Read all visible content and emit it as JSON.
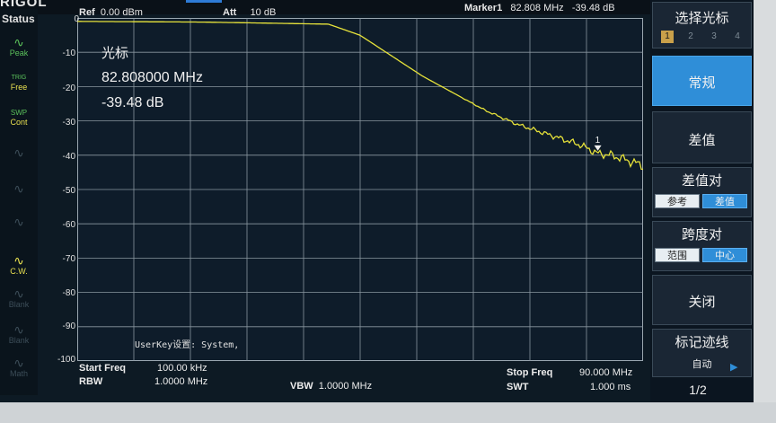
{
  "header": {
    "logo": "RIGOL",
    "ref_label": "Ref",
    "ref_value": "0.00 dBm",
    "att_label": "Att",
    "att_value": "10 dB",
    "marker_label": "Marker1",
    "marker_freq": "82.808 MHz",
    "marker_amp": "-39.48 dB"
  },
  "status": {
    "title": "Status",
    "items": [
      {
        "label": "Peak",
        "icon": "peak-icon"
      },
      {
        "label": "TRIG",
        "value": "Free"
      },
      {
        "label": "SWP",
        "value": "Cont"
      },
      {
        "label": "C.W.",
        "icon": "cw-icon"
      },
      {
        "label": "Blank"
      },
      {
        "label": "Blank"
      },
      {
        "label": "Math"
      }
    ]
  },
  "plot": {
    "y_ticks": [
      "0",
      "-10",
      "-20",
      "-30",
      "-40",
      "-50",
      "-60",
      "-70",
      "-80",
      "-90",
      "-100"
    ],
    "marker_box": {
      "title": "光标",
      "freq": "82.808000 MHz",
      "amp": "-39.48 dB"
    },
    "marker_number": "1",
    "user_key": "UserKey设置:   System,",
    "trace_color": "#e6e23a"
  },
  "chart_data": {
    "type": "line",
    "title": "",
    "xlabel": "",
    "ylabel": "",
    "xlim": [
      0.1,
      90.0
    ],
    "ylim": [
      -100,
      0
    ],
    "x": [
      0.1,
      20,
      40,
      45,
      50,
      55,
      60,
      65,
      70,
      75,
      80,
      82.8,
      85,
      90
    ],
    "series": [
      {
        "values": [
          -1.0,
          -1.2,
          -1.8,
          -5,
          -11,
          -17,
          -22,
          -27,
          -31,
          -34,
          -37,
          -39.5,
          -40,
          -43
        ]
      }
    ]
  },
  "footer": {
    "start_label": "Start Freq",
    "start_value": "100.00 kHz",
    "rbw_label": "RBW",
    "rbw_value": "1.0000 MHz",
    "vbw_label": "VBW",
    "vbw_value": "1.0000 MHz",
    "stop_label": "Stop Freq",
    "stop_value": "90.000 MHz",
    "swt_label": "SWT",
    "swt_value": "1.000 ms"
  },
  "softkeys": {
    "select_marker": "选择光标",
    "marker_tabs": [
      "1",
      "2",
      "3",
      "4"
    ],
    "normal": "常规",
    "delta": "差值",
    "delta_pair": "差值对",
    "delta_pair_opts": [
      "参考",
      "差值"
    ],
    "span_pair": "跨度对",
    "span_pair_opts": [
      "范围",
      "中心"
    ],
    "close": "关闭",
    "marker_trace": "标记迹线",
    "marker_trace_value": "自动",
    "page": "1/2"
  },
  "colors": {
    "active_key": "#2f8ed8",
    "trace": "#e6e23a",
    "status_green": "#5ac05a"
  }
}
